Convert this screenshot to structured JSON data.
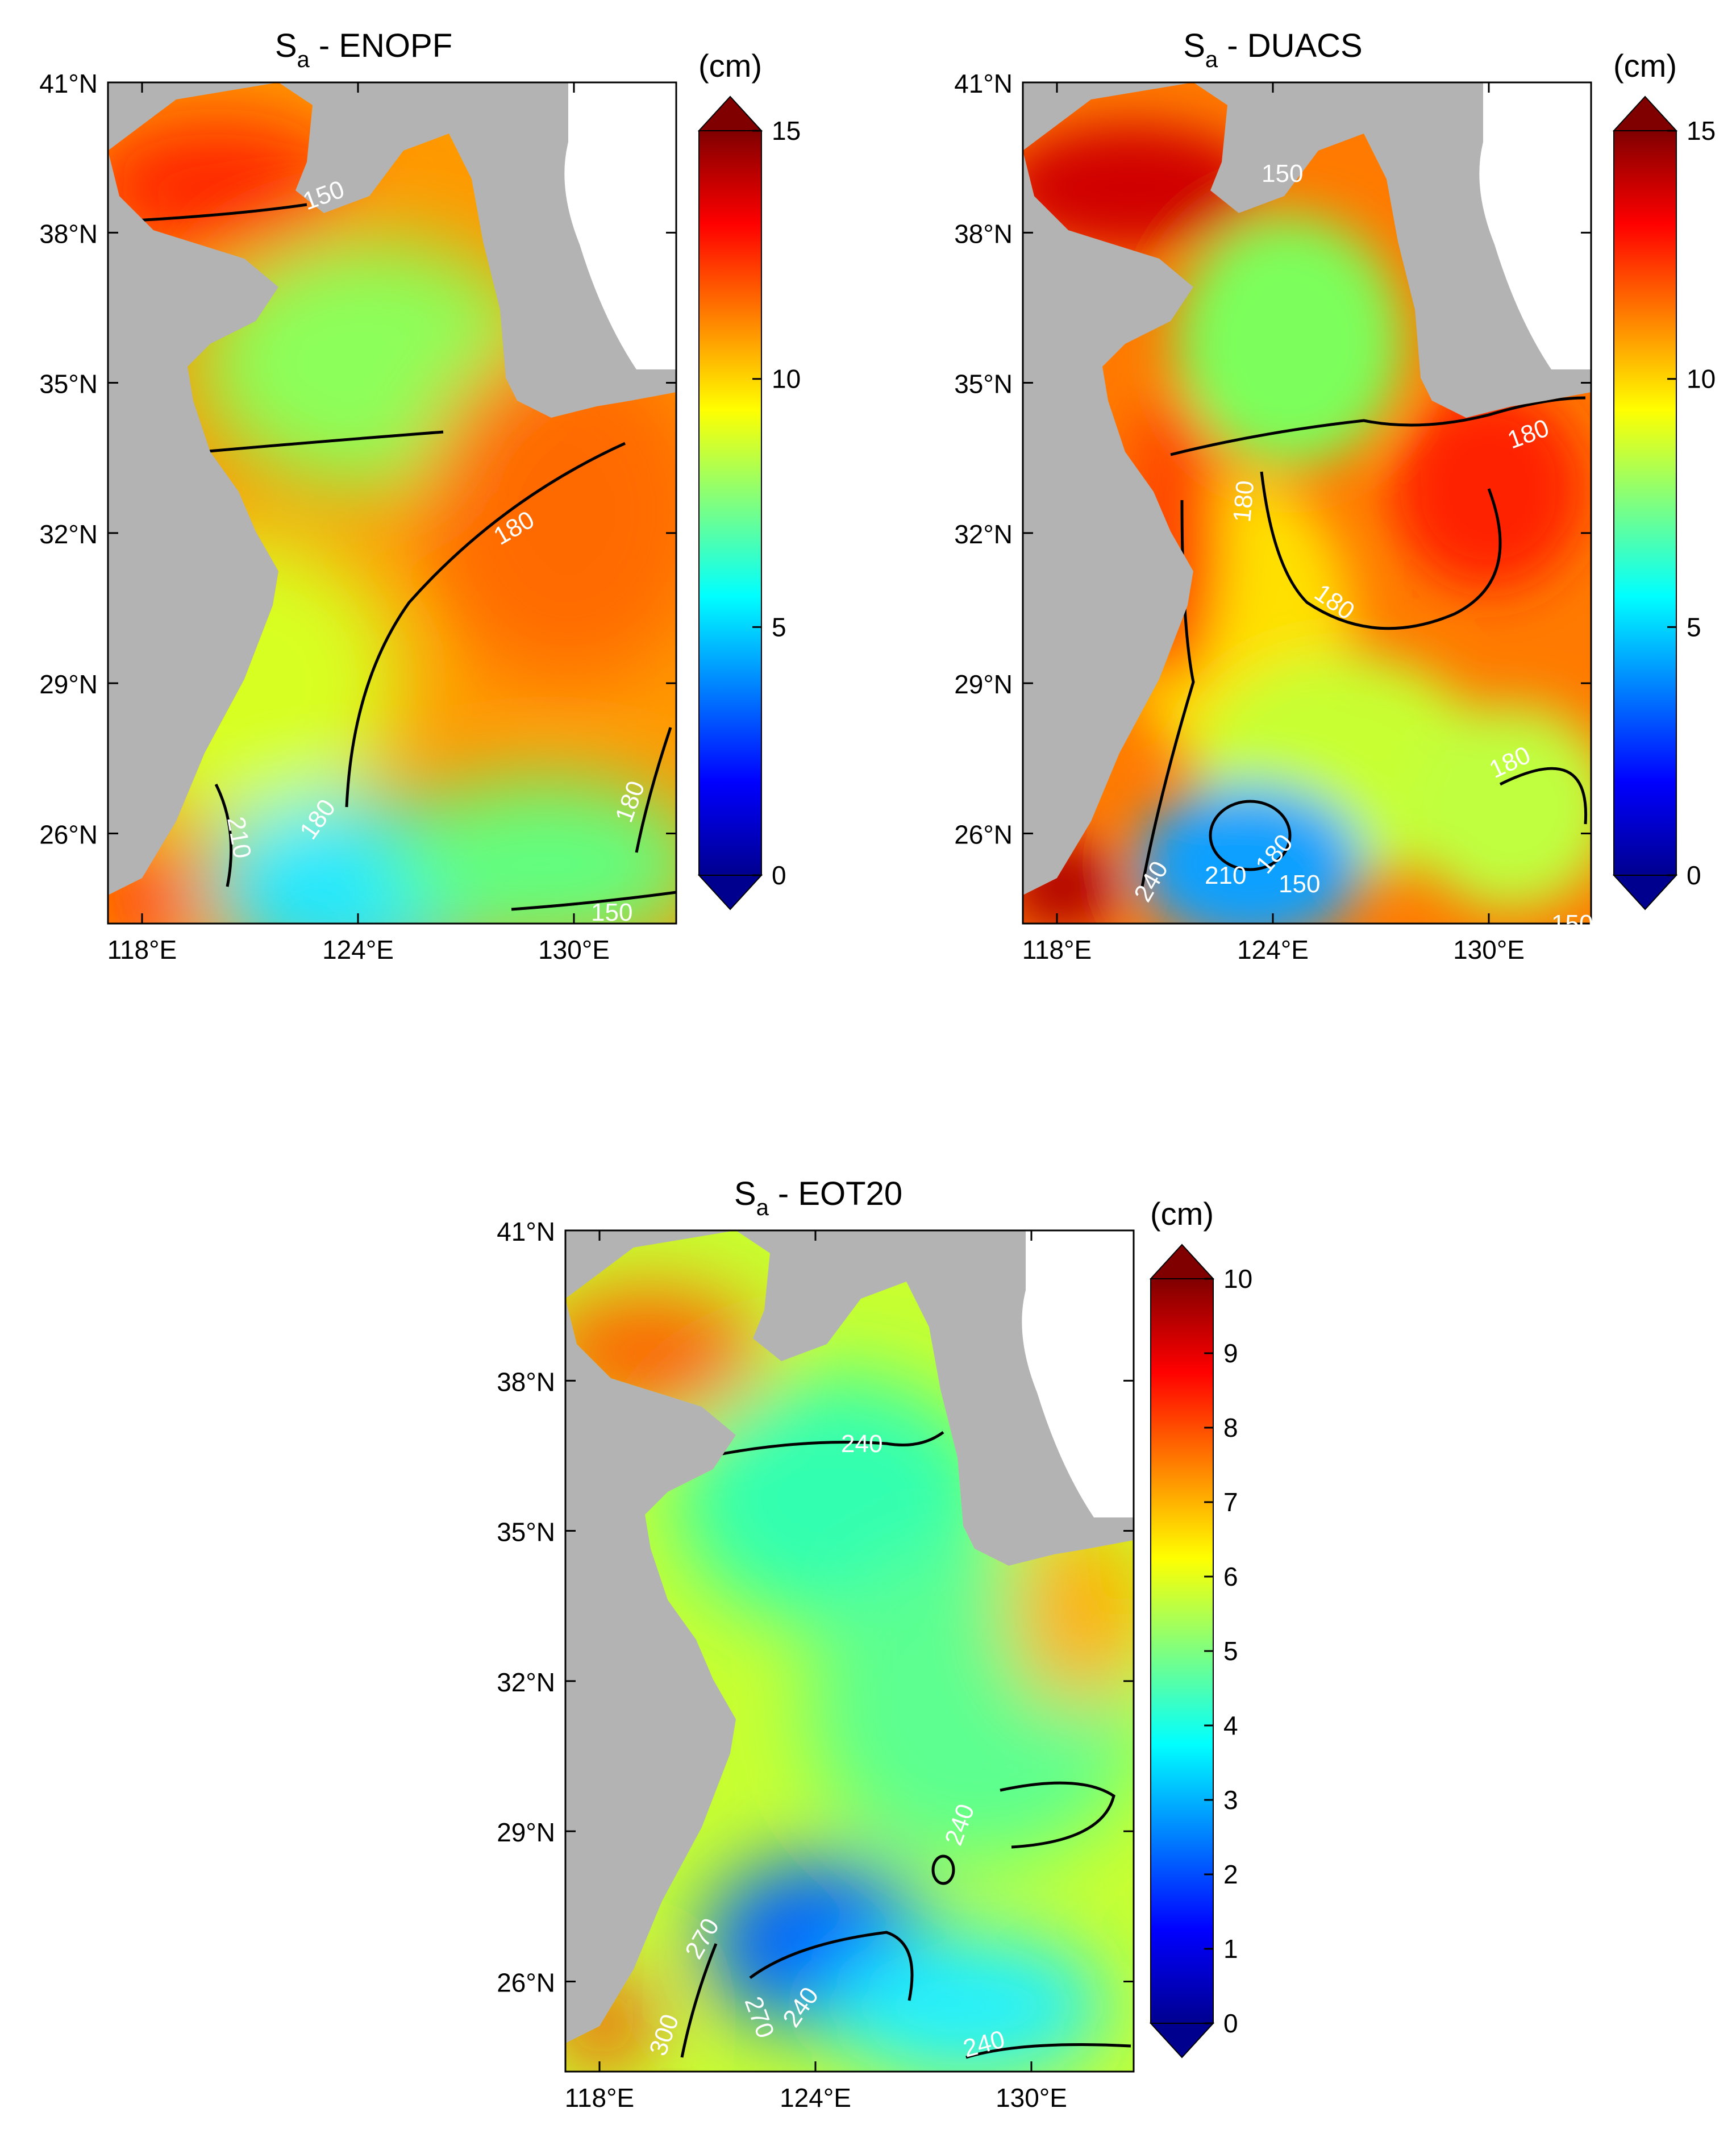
{
  "figure": {
    "panels": [
      {
        "id": "enopf",
        "title_main": "S",
        "title_sub": "a",
        "title_rest": " - ENOPF",
        "unit": "(cm)",
        "colorbar_min": 0,
        "colorbar_max": 15,
        "colorbar_ticks": [
          0,
          5,
          10,
          15
        ],
        "lat_ticks": [
          "41°N",
          "38°N",
          "35°N",
          "32°N",
          "29°N",
          "26°N"
        ],
        "lon_ticks": [
          "118°E",
          "124°E",
          "130°E"
        ],
        "contour_labels": [
          "150",
          "180",
          "210",
          "180",
          "180",
          "150"
        ]
      },
      {
        "id": "duacs",
        "title_main": "S",
        "title_sub": "a",
        "title_rest": " - DUACS",
        "unit": "(cm)",
        "colorbar_min": 0,
        "colorbar_max": 15,
        "colorbar_ticks": [
          0,
          5,
          10,
          15
        ],
        "lat_ticks": [
          "41°N",
          "38°N",
          "35°N",
          "32°N",
          "29°N",
          "26°N"
        ],
        "lon_ticks": [
          "118°E",
          "124°E",
          "130°E"
        ],
        "contour_labels": [
          "150",
          "180",
          "180",
          "180",
          "180",
          "210",
          "180",
          "150",
          "240",
          "150"
        ]
      },
      {
        "id": "eot20",
        "title_main": "S",
        "title_sub": "a",
        "title_rest": " - EOT20",
        "unit": "(cm)",
        "colorbar_min": 0,
        "colorbar_max": 10,
        "colorbar_ticks": [
          0,
          1,
          2,
          3,
          4,
          5,
          6,
          7,
          8,
          9,
          10
        ],
        "lat_ticks": [
          "41°N",
          "38°N",
          "35°N",
          "32°N",
          "29°N",
          "26°N"
        ],
        "lon_ticks": [
          "118°E",
          "124°E",
          "130°E"
        ],
        "contour_labels": [
          "240",
          "240",
          "270",
          "270",
          "240",
          "300",
          "240"
        ]
      }
    ],
    "colors": {
      "land": "#b3b3b3",
      "colormap": [
        "#00008f",
        "#0000ff",
        "#00bfff",
        "#7fff7f",
        "#ffff00",
        "#ff8000",
        "#ff0000",
        "#800000"
      ]
    }
  }
}
